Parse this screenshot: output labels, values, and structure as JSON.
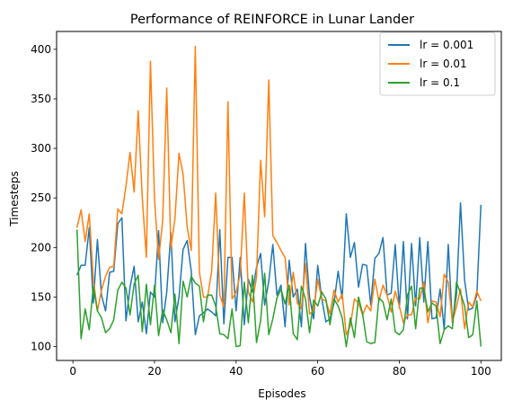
{
  "chart_data": {
    "type": "line",
    "title": "Performance of REINFORCE in Lunar Lander",
    "xlabel": "Episodes",
    "ylabel": "Timesteps",
    "xlim": [
      -4,
      105
    ],
    "ylim": [
      86,
      418
    ],
    "xticks": [
      0,
      20,
      40,
      60,
      80,
      100
    ],
    "yticks": [
      100,
      150,
      200,
      250,
      300,
      350,
      400
    ],
    "grid": false,
    "legend_position": "top-right",
    "x": [
      1,
      2,
      3,
      4,
      5,
      6,
      7,
      8,
      9,
      10,
      11,
      12,
      13,
      14,
      15,
      16,
      17,
      18,
      19,
      20,
      21,
      22,
      23,
      24,
      25,
      26,
      27,
      28,
      29,
      30,
      31,
      32,
      33,
      34,
      35,
      36,
      37,
      38,
      39,
      40,
      41,
      42,
      43,
      44,
      45,
      46,
      47,
      48,
      49,
      50,
      51,
      52,
      53,
      54,
      55,
      56,
      57,
      58,
      59,
      60,
      61,
      62,
      63,
      64,
      65,
      66,
      67,
      68,
      69,
      70,
      71,
      72,
      73,
      74,
      75,
      76,
      77,
      78,
      79,
      80,
      81,
      82,
      83,
      84,
      85,
      86,
      87,
      88,
      89,
      90,
      91,
      92,
      93,
      94,
      95,
      96,
      97,
      98,
      99,
      100
    ],
    "series": [
      {
        "name": "lr = 0.001",
        "color": "#1f77b4",
        "values": [
          172,
          182,
          182,
          220,
          144,
          208,
          152,
          136,
          175,
          176,
          224,
          230,
          126,
          160,
          181,
          125,
          145,
          113,
          155,
          150,
          217,
          124,
          155,
          215,
          125,
          150,
          198,
          207,
          176,
          112,
          131,
          134,
          138,
          135,
          131,
          218,
          123,
          190,
          190,
          136,
          190,
          122,
          168,
          155,
          180,
          194,
          142,
          166,
          203,
          152,
          162,
          120,
          187,
          150,
          158,
          120,
          204,
          150,
          128,
          182,
          148,
          125,
          128,
          144,
          176,
          148,
          234,
          190,
          205,
          160,
          183,
          182,
          142,
          189,
          194,
          210,
          152,
          154,
          203,
          139,
          206,
          128,
          204,
          141,
          210,
          145,
          206,
          128,
          129,
          158,
          117,
          203,
          124,
          152,
          245,
          167,
          137,
          139,
          152,
          243
        ],
        "fmt": "line"
      },
      {
        "name": "lr = 0.01",
        "color": "#ff7f0e",
        "values": [
          220,
          238,
          206,
          234,
          168,
          136,
          157,
          171,
          180,
          181,
          239,
          234,
          262,
          296,
          256,
          338,
          250,
          190,
          388,
          249,
          188,
          227,
          361,
          199,
          229,
          295,
          274,
          221,
          197,
          403,
          175,
          150,
          150,
          176,
          255,
          152,
          140,
          347,
          148,
          155,
          173,
          255,
          155,
          145,
          170,
          288,
          231,
          369,
          212,
          205,
          197,
          190,
          142,
          175,
          144,
          138,
          184,
          133,
          136,
          168,
          148,
          146,
          133,
          157,
          145,
          153,
          112,
          121,
          148,
          144,
          132,
          142,
          136,
          168,
          146,
          162,
          152,
          135,
          156,
          141,
          124,
          132,
          132,
          149,
          148,
          165,
          124,
          146,
          145,
          130,
          173,
          165,
          125,
          140,
          158,
          118,
          145,
          140,
          156,
          146
        ],
        "fmt": "line"
      },
      {
        "name": "lr = 0.1",
        "color": "#2ca02c",
        "values": [
          218,
          108,
          138,
          117,
          161,
          136,
          129,
          114,
          118,
          127,
          157,
          165,
          159,
          132,
          163,
          172,
          115,
          163,
          122,
          162,
          111,
          137,
          127,
          114,
          153,
          103,
          166,
          150,
          171,
          164,
          161,
          125,
          152,
          152,
          141,
          113,
          112,
          108,
          138,
          100,
          101,
          165,
          124,
          172,
          104,
          126,
          174,
          112,
          128,
          149,
          158,
          143,
          162,
          113,
          107,
          161,
          148,
          114,
          147,
          141,
          155,
          148,
          122,
          148,
          141,
          129,
          100,
          129,
          109,
          150,
          133,
          105,
          103,
          104,
          149,
          145,
          127,
          148,
          115,
          112,
          117,
          152,
          161,
          118,
          159,
          159,
          135,
          144,
          141,
          103,
          117,
          121,
          118,
          165,
          154,
          141,
          109,
          112,
          146,
          100
        ],
        "fmt": "line"
      }
    ]
  }
}
